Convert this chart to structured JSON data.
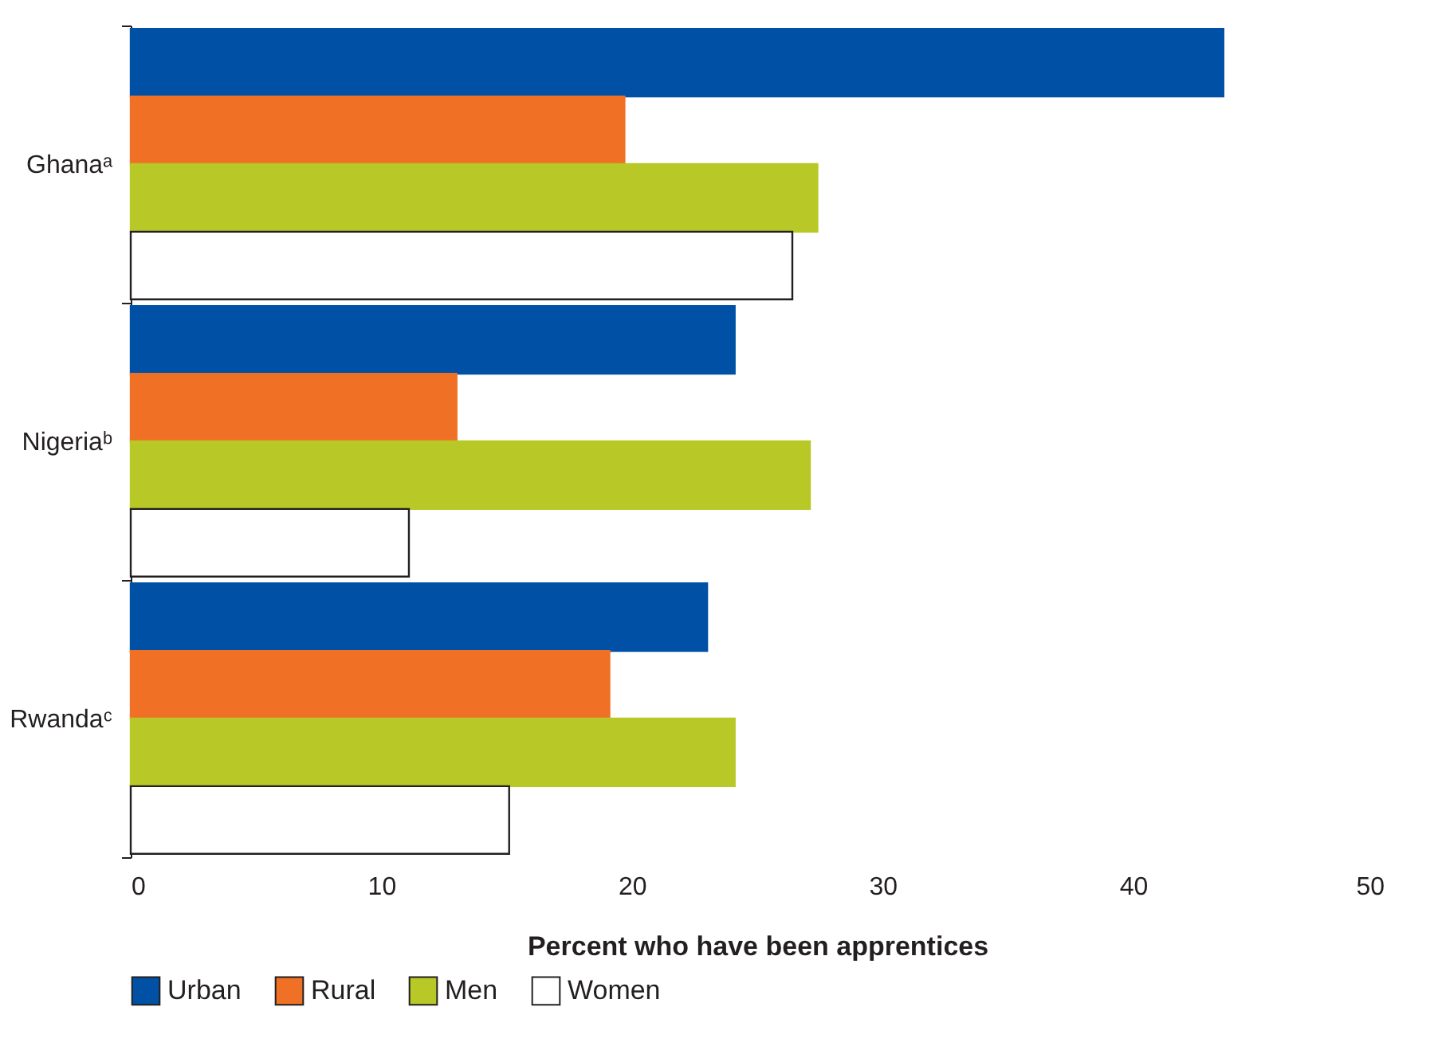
{
  "chart_data": {
    "type": "bar",
    "orientation": "horizontal",
    "categories": [
      "Ghanaᵃ",
      "Nigeriaᵇ",
      "Rwandaᶜ"
    ],
    "series": [
      {
        "name": "Urban",
        "color": "#0051a5",
        "values": [
          43.6,
          24.1,
          23.0
        ]
      },
      {
        "name": "Rural",
        "color": "#f07125",
        "values": [
          19.7,
          13.0,
          19.1
        ]
      },
      {
        "name": "Men",
        "color": "#b8c827",
        "values": [
          27.4,
          27.1,
          24.1
        ]
      },
      {
        "name": "Women",
        "color": "#ffffff",
        "values": [
          26.4,
          11.1,
          15.1
        ]
      }
    ],
    "xlabel": "Percent who have been apprentices",
    "xlim": [
      0,
      50
    ],
    "xticks": [
      0,
      10,
      20,
      30,
      40,
      50
    ],
    "grid": false,
    "legend": "bottom"
  }
}
